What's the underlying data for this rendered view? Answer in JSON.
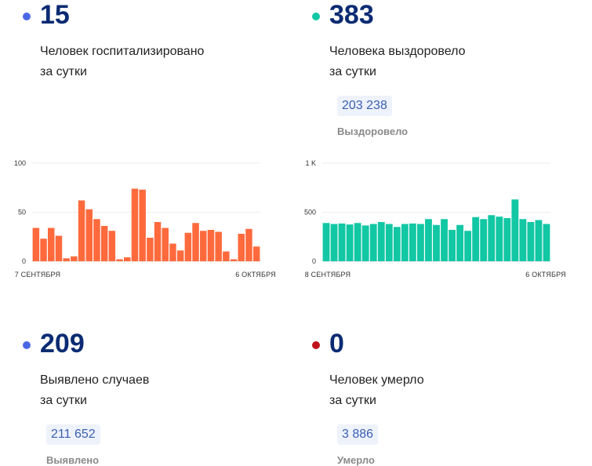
{
  "stats": [
    {
      "value": "15",
      "line1": "Человек госпитализировано",
      "line2": "за сутки",
      "color": "#4a68e6"
    },
    {
      "value": "383",
      "line1": "Человека выздоровело",
      "line2": "за сутки",
      "total": "203 238",
      "total_label": "Выздоровело",
      "color": "#12c7a4"
    },
    {
      "value": "209",
      "line1": "Выявлено случаев",
      "line2": "за сутки",
      "total": "211 652",
      "total_label": "Выявлено",
      "color": "#4a68e6"
    },
    {
      "value": "0",
      "line1": "Человек умерло",
      "line2": "за сутки",
      "total": "3 886",
      "total_label": "Умерло",
      "color": "#c0131b"
    }
  ],
  "chart_data": [
    {
      "type": "bar",
      "title": "",
      "color": "#ff6a3d",
      "ylim": [
        0,
        100
      ],
      "yticks": [
        "100",
        "50",
        "0"
      ],
      "x_start_label": "7 СЕНТЯБРЯ",
      "x_end_label": "6 ОКТЯБРЯ",
      "grid": true,
      "values": [
        34,
        23,
        34,
        26,
        3,
        5,
        62,
        53,
        43,
        36,
        31,
        2,
        4,
        74,
        73,
        24,
        40,
        34,
        18,
        11,
        29,
        39,
        31,
        32,
        30,
        10,
        2,
        28,
        33,
        15
      ]
    },
    {
      "type": "bar",
      "title": "",
      "color": "#12c7a4",
      "ylim": [
        0,
        1000
      ],
      "yticks": [
        "1 K",
        "500",
        "0"
      ],
      "x_start_label": "8 СЕНТЯБРЯ",
      "x_end_label": "6 ОКТЯБРЯ",
      "grid": true,
      "values": [
        390,
        380,
        385,
        375,
        390,
        365,
        380,
        400,
        380,
        350,
        380,
        385,
        380,
        430,
        370,
        430,
        320,
        370,
        310,
        450,
        430,
        470,
        455,
        440,
        630,
        430,
        400,
        420,
        380
      ]
    }
  ]
}
